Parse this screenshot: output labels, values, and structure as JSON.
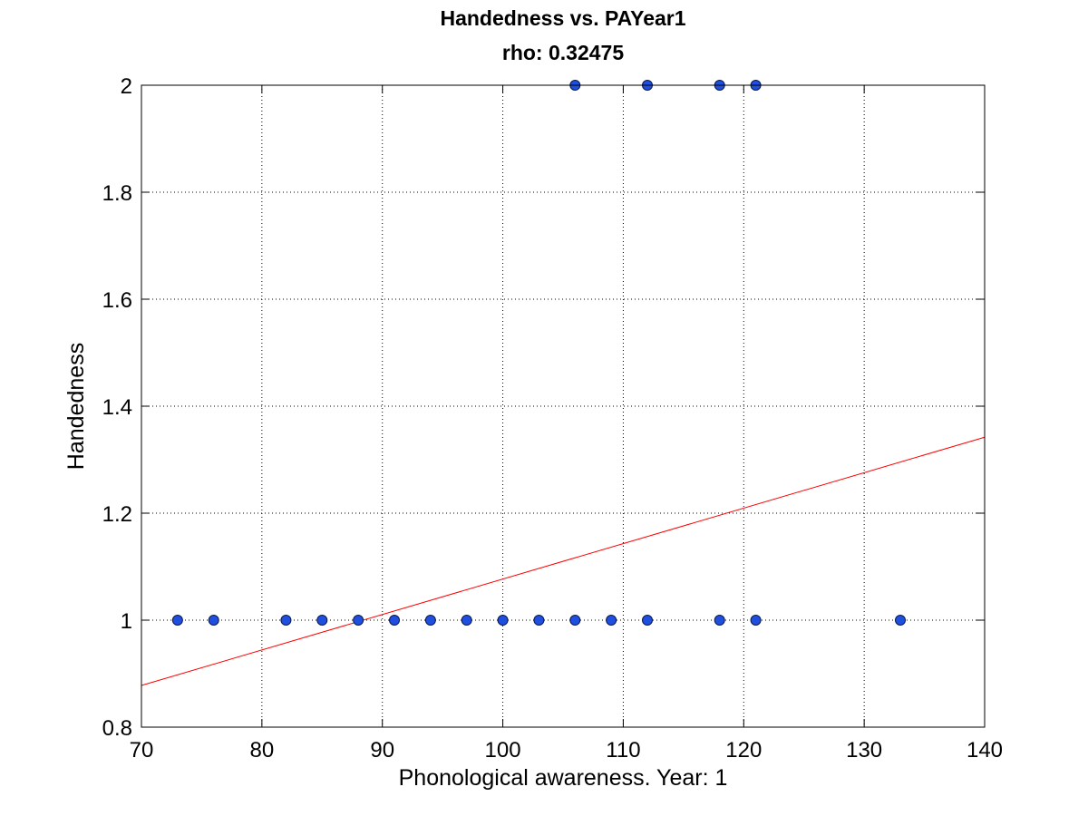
{
  "chart_data": {
    "type": "scatter",
    "title": "Handedness vs. PAYear1",
    "subtitle": "rho: 0.32475",
    "xlabel": "Phonological awareness. Year: 1",
    "ylabel": "Handedness",
    "xlim": [
      70,
      140
    ],
    "ylim": [
      0.8,
      2
    ],
    "xticks": [
      70,
      80,
      90,
      100,
      110,
      120,
      130,
      140
    ],
    "yticks": [
      0.8,
      1,
      1.2,
      1.4,
      1.6,
      1.8,
      2
    ],
    "xtick_labels": [
      "70",
      "80",
      "90",
      "100",
      "110",
      "120",
      "130",
      "140"
    ],
    "ytick_labels": [
      "0.8",
      "1",
      "1.2",
      "1.4",
      "1.6",
      "1.8",
      "2"
    ],
    "grid": true,
    "points": [
      {
        "x": 73,
        "y": 1
      },
      {
        "x": 76,
        "y": 1
      },
      {
        "x": 82,
        "y": 1
      },
      {
        "x": 85,
        "y": 1
      },
      {
        "x": 88,
        "y": 1
      },
      {
        "x": 91,
        "y": 1
      },
      {
        "x": 94,
        "y": 1
      },
      {
        "x": 97,
        "y": 1
      },
      {
        "x": 100,
        "y": 1
      },
      {
        "x": 103,
        "y": 1
      },
      {
        "x": 106,
        "y": 1
      },
      {
        "x": 109,
        "y": 1
      },
      {
        "x": 112,
        "y": 1
      },
      {
        "x": 118,
        "y": 1
      },
      {
        "x": 121,
        "y": 1
      },
      {
        "x": 133,
        "y": 1
      },
      {
        "x": 106,
        "y": 2
      },
      {
        "x": 112,
        "y": 2
      },
      {
        "x": 118,
        "y": 2
      },
      {
        "x": 121,
        "y": 2
      }
    ],
    "fit_line": {
      "x": [
        70,
        140
      ],
      "y": [
        0.878,
        1.342
      ]
    },
    "colors": {
      "marker_fill": "#1f4fe0",
      "marker_edge": "#0a1a4a",
      "fit_line": "#ff0000",
      "grid": "#000000",
      "axes": "#000000"
    }
  }
}
